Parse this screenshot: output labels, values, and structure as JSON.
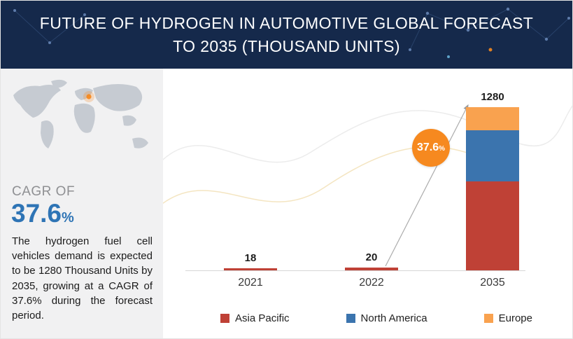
{
  "header": {
    "title": "FUTURE OF HYDROGEN IN AUTOMOTIVE GLOBAL FORECAST TO 2035 (THOUSAND UNITS)"
  },
  "sidebar": {
    "cagr_label": "CAGR OF",
    "cagr_value": "37.6",
    "cagr_unit": "%",
    "description": "The hydrogen fuel cell vehicles demand is expected to be 1280 Thousand Units by 2035, growing at a CAGR of 37.6% during the forecast period."
  },
  "chart_data": {
    "type": "bar",
    "stacked": true,
    "title": "Future of Hydrogen in Automotive Global Forecast to 2035 (Thousand Units)",
    "categories": [
      "2021",
      "2022",
      "2035"
    ],
    "series": [
      {
        "name": "Asia Pacific",
        "color": "#bf4136",
        "values": [
          18,
          20,
          700
        ]
      },
      {
        "name": "North America",
        "color": "#3b74ae",
        "values": [
          0,
          0,
          400
        ]
      },
      {
        "name": "Europe",
        "color": "#f9a24f",
        "values": [
          0,
          0,
          180
        ]
      }
    ],
    "totals": [
      18,
      20,
      1280
    ],
    "data_labels": [
      "18",
      "20",
      "1280"
    ],
    "ylim": [
      0,
      1280
    ],
    "grid": false,
    "legend_position": "bottom",
    "annotation": {
      "value": "37.6",
      "suffix": "%",
      "color": "#f6891f"
    }
  }
}
